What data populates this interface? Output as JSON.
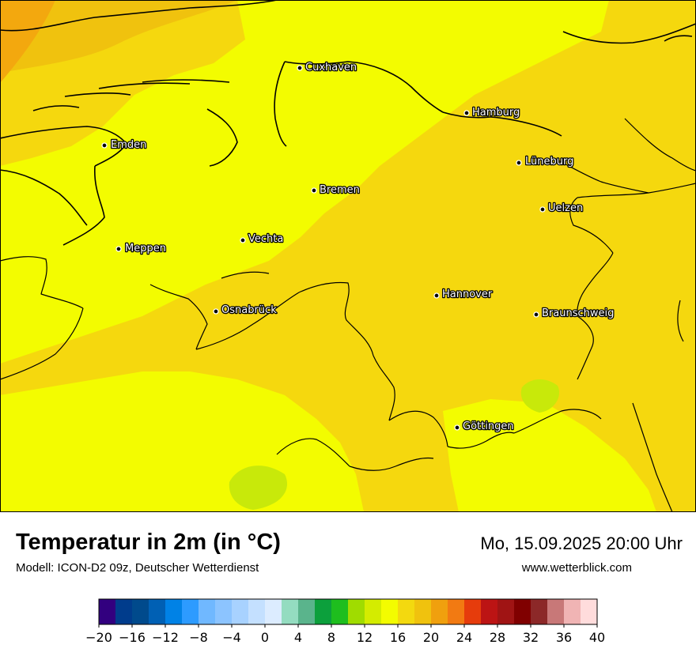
{
  "map": {
    "background_color": "#f5d80e",
    "colors": {
      "t12": "#c8e90a",
      "t14": "#f3fc00",
      "t16": "#f3d90f",
      "t18": "#f0c20e",
      "t20": "#f3a80e"
    },
    "cities": [
      {
        "name": "Cuxhaven"
      },
      {
        "name": "Hamburg"
      },
      {
        "name": "Emden"
      },
      {
        "name": "Lüneburg"
      },
      {
        "name": "Bremen"
      },
      {
        "name": "Uelzen"
      },
      {
        "name": "Vechta"
      },
      {
        "name": "Meppen"
      },
      {
        "name": "Hannover"
      },
      {
        "name": "Osnabrück"
      },
      {
        "name": "Braunschweig"
      },
      {
        "name": "Göttingen"
      }
    ]
  },
  "footer": {
    "title": "Temperatur in 2m (in °C)",
    "model": "Modell: ICON-D2 09z, Deutscher Wetterdienst",
    "datetime": "Mo, 15.09.2025 20:00 Uhr",
    "website": "www.wetterblick.com"
  },
  "colorbar": {
    "min": -20,
    "max": 40,
    "ticks": [
      "−20",
      "−16",
      "−12",
      "−8",
      "−4",
      "0",
      "4",
      "8",
      "12",
      "16",
      "20",
      "24",
      "28",
      "32",
      "36",
      "40"
    ],
    "colors": [
      "#32007f",
      "#003c8c",
      "#004a8c",
      "#0060b4",
      "#0082e6",
      "#2d9bff",
      "#70b8ff",
      "#8cc4ff",
      "#a8d2ff",
      "#c4e0ff",
      "#dcecff",
      "#94dcc0",
      "#5ab48c",
      "#0ca03c",
      "#1ebe1e",
      "#a0dc00",
      "#d4ec00",
      "#f3fc00",
      "#f3d90f",
      "#f0c20e",
      "#f0a00e",
      "#f27a12",
      "#e63c0c",
      "#bc1414",
      "#a01414",
      "#800000",
      "#8c2828",
      "#c87878",
      "#f0b4b4",
      "#ffdcdc"
    ]
  }
}
